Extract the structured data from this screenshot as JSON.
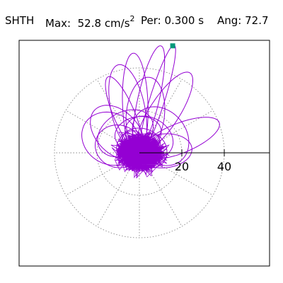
{
  "header": {
    "station": "SHTH",
    "max_label": "Max:",
    "max_value": "52.8",
    "max_unit": "cm/s",
    "max_unit_exp": "2",
    "period_label": "Per:",
    "period_value": "0.300 s",
    "angle_label": "Ang:",
    "angle_value": "72.7"
  },
  "chart_data": {
    "type": "polar-hodogram",
    "radial_ticks": [
      20,
      40
    ],
    "radial_tick_labels": [
      "20",
      "40"
    ],
    "radial_rings": [
      20,
      40
    ],
    "spoke_angles_deg": [
      0,
      30,
      60,
      90,
      120,
      150,
      180,
      210,
      240,
      270,
      300,
      330
    ],
    "max_radius": 52.8,
    "max_angle_deg": 72.7,
    "colors": {
      "trace": "#9400d3",
      "marker": "#00997a",
      "grid": "#888888",
      "axis": "#000000"
    },
    "loops": [
      {
        "a": 52.8,
        "b": 3.5,
        "theta": 72.7
      },
      {
        "a": 51.0,
        "b": 5.0,
        "theta": 77
      },
      {
        "a": 44.0,
        "b": 7.0,
        "theta": 57
      },
      {
        "a": 48.0,
        "b": 6.0,
        "theta": 92
      },
      {
        "a": 42.0,
        "b": 8.0,
        "theta": 102
      },
      {
        "a": 38.0,
        "b": 5.0,
        "theta": 113
      },
      {
        "a": 35.0,
        "b": 9.0,
        "theta": 84
      },
      {
        "a": 40.0,
        "b": 7.0,
        "theta": 22
      },
      {
        "a": 30.0,
        "b": 10.0,
        "theta": 134
      },
      {
        "a": 28.0,
        "b": 12.0,
        "theta": 150
      },
      {
        "a": 26.0,
        "b": 8.0,
        "theta": 5
      },
      {
        "a": 24.0,
        "b": 15.0,
        "theta": 40
      },
      {
        "a": 22.0,
        "b": 10.0,
        "theta": 165
      },
      {
        "a": 20.0,
        "b": 14.0,
        "theta": 120
      },
      {
        "a": 18.0,
        "b": 12.0,
        "theta": 60
      },
      {
        "a": 16.0,
        "b": 11.0,
        "theta": 100
      },
      {
        "a": 14.0,
        "b": 8.0,
        "theta": 15
      },
      {
        "a": 12.0,
        "b": 9.0,
        "theta": 80
      },
      {
        "a": 10.0,
        "b": 7.0,
        "theta": 140
      },
      {
        "a": 9.0,
        "b": 6.0,
        "theta": 30
      }
    ]
  }
}
